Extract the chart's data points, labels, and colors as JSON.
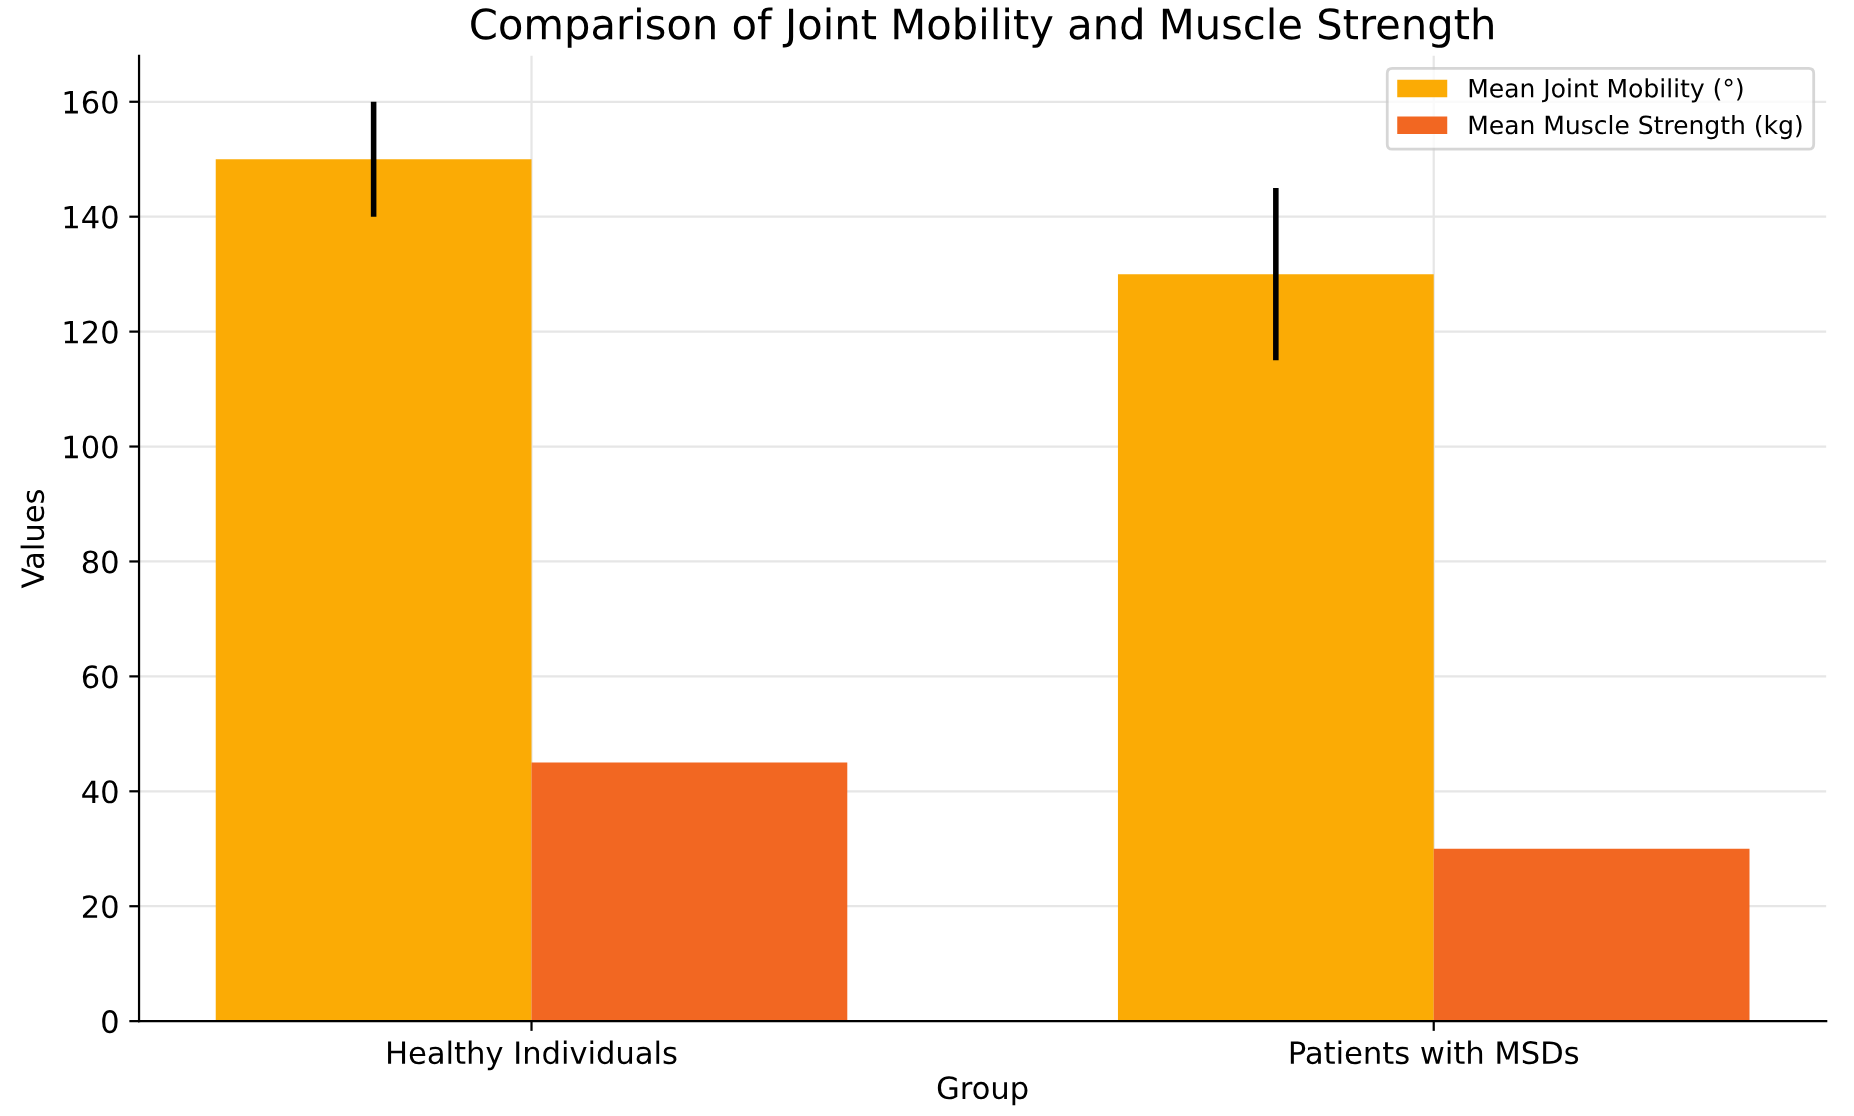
{
  "chart_data": {
    "type": "bar",
    "title": "Comparison of Joint Mobility and Muscle Strength",
    "xlabel": "Group",
    "ylabel": "Values",
    "categories": [
      "Healthy Individuals",
      "Patients with MSDs"
    ],
    "series": [
      {
        "name": "Mean Joint Mobility (°)",
        "color": "#fbab05",
        "values": [
          150,
          130
        ],
        "errors": [
          10,
          15
        ]
      },
      {
        "name": "Mean Muscle Strength (kg)",
        "color": "#f26722",
        "values": [
          45,
          30
        ]
      }
    ],
    "ylim": [
      0,
      168
    ],
    "yticks": [
      0,
      20,
      40,
      60,
      80,
      100,
      120,
      140,
      160
    ],
    "grid": true,
    "legend": "top right"
  }
}
